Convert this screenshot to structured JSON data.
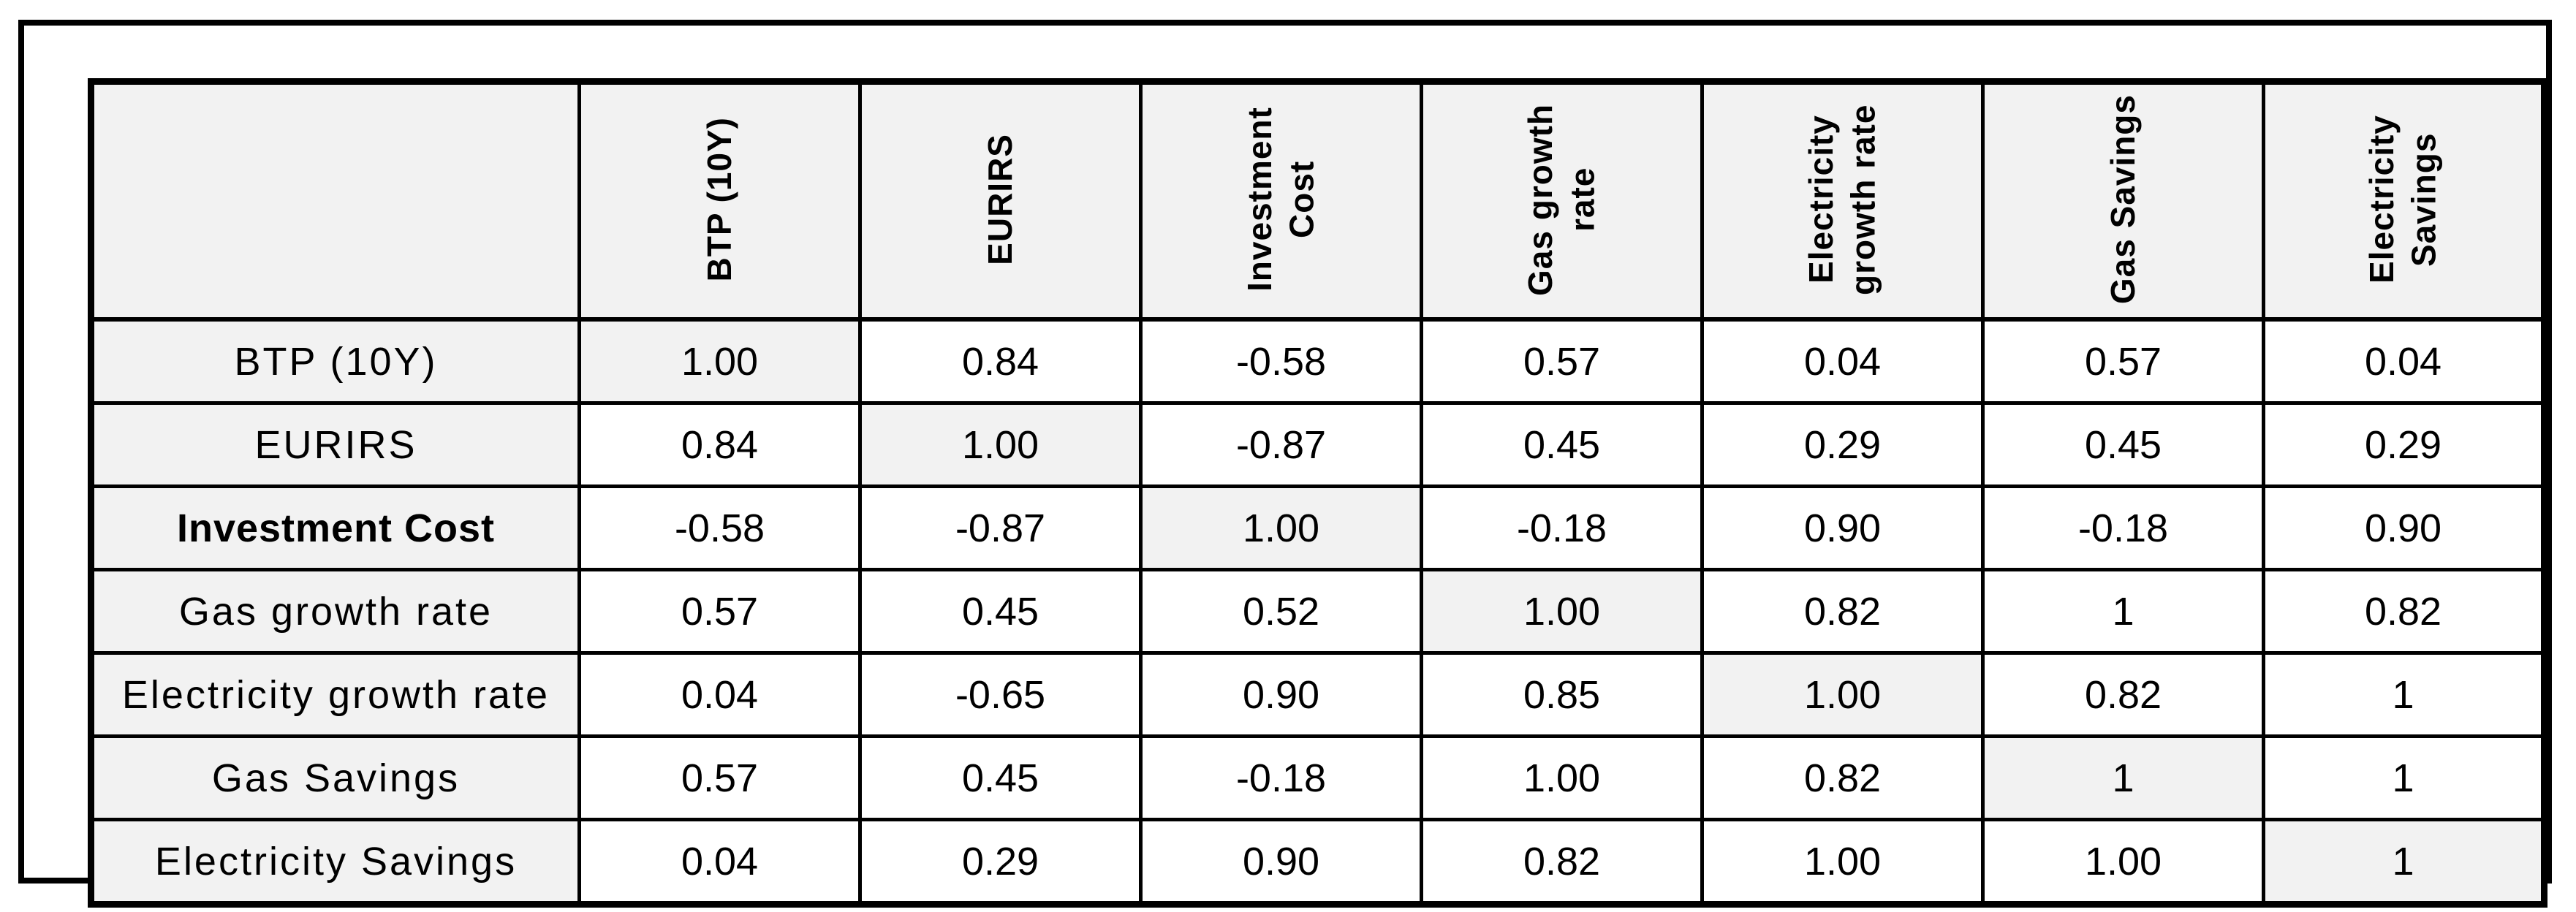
{
  "table": {
    "corner_label": "",
    "columns": [
      "BTP (10Y)",
      "EURIRS",
      "Investment Cost",
      "Gas growth rate",
      "Electricity growth rate",
      "Gas Savings",
      "Electricity Savings"
    ],
    "rows": [
      {
        "label": "BTP (10Y)",
        "bold": false,
        "diagonal": 0,
        "values": [
          "1.00",
          "0.84",
          "-0.58",
          "0.57",
          "0.04",
          "0.57",
          "0.04"
        ]
      },
      {
        "label": "EURIRS",
        "bold": false,
        "diagonal": 1,
        "values": [
          "0.84",
          "1.00",
          "-0.87",
          "0.45",
          "0.29",
          "0.45",
          "0.29"
        ]
      },
      {
        "label": "Investment Cost",
        "bold": true,
        "diagonal": 2,
        "values": [
          "-0.58",
          "-0.87",
          "1.00",
          "-0.18",
          "0.90",
          "-0.18",
          "0.90"
        ]
      },
      {
        "label": "Gas growth rate",
        "bold": false,
        "diagonal": 3,
        "values": [
          "0.57",
          "0.45",
          "0.52",
          "1.00",
          "0.82",
          "1",
          "0.82"
        ]
      },
      {
        "label": "Electricity growth rate",
        "bold": false,
        "diagonal": 4,
        "values": [
          "0.04",
          "-0.65",
          "0.90",
          "0.85",
          "1.00",
          "0.82",
          "1"
        ]
      },
      {
        "label": "Gas Savings",
        "bold": false,
        "diagonal": 5,
        "values": [
          "0.57",
          "0.45",
          "-0.18",
          "1.00",
          "0.82",
          "1",
          "1"
        ]
      },
      {
        "label": "Electricity Savings",
        "bold": false,
        "diagonal": 6,
        "values": [
          "0.04",
          "0.29",
          "0.90",
          "0.82",
          "1.00",
          "1.00",
          "1"
        ]
      }
    ],
    "colors": {
      "header_bg": "#f2f2f2",
      "diagonal_bg": "#f2f2f2",
      "cell_bg": "#ffffff",
      "border": "#000000"
    }
  },
  "chart_data": {
    "type": "table",
    "columns": [
      "BTP (10Y)",
      "EURIRS",
      "Investment Cost",
      "Gas growth rate",
      "Electricity growth rate",
      "Gas Savings",
      "Electricity Savings"
    ],
    "row_labels": [
      "BTP (10Y)",
      "EURIRS",
      "Investment Cost",
      "Gas growth rate",
      "Electricity growth rate",
      "Gas Savings",
      "Electricity Savings"
    ],
    "matrix": [
      [
        1.0,
        0.84,
        -0.58,
        0.57,
        0.04,
        0.57,
        0.04
      ],
      [
        0.84,
        1.0,
        -0.87,
        0.45,
        0.29,
        0.45,
        0.29
      ],
      [
        -0.58,
        -0.87,
        1.0,
        -0.18,
        0.9,
        -0.18,
        0.9
      ],
      [
        0.57,
        0.45,
        0.52,
        1.0,
        0.82,
        1,
        0.82
      ],
      [
        0.04,
        -0.65,
        0.9,
        0.85,
        1.0,
        0.82,
        1
      ],
      [
        0.57,
        0.45,
        -0.18,
        1.0,
        0.82,
        1,
        1
      ],
      [
        0.04,
        0.29,
        0.9,
        0.82,
        1.0,
        1.0,
        1
      ]
    ],
    "layout_hints": {
      "diagonal_shaded": true,
      "header_row_rotated_90deg": true,
      "grid": true
    }
  }
}
